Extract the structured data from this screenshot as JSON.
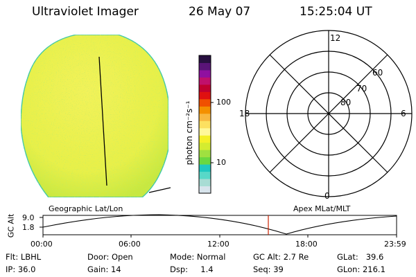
{
  "header": {
    "instrument": "Ultraviolet Imager",
    "date": "26 May 07",
    "time": "15:25:04 UT"
  },
  "colorbar": {
    "label": "photon cm⁻²s⁻¹",
    "ticks": [
      "100",
      "10"
    ],
    "colors": [
      "#d8e4ec",
      "#a8dcd4",
      "#58d8c8",
      "#20c8c0",
      "#6ad840",
      "#a0e040",
      "#d4ec30",
      "#f4f028",
      "#fff89a",
      "#fce060",
      "#f8b840",
      "#f49000",
      "#f05000",
      "#e01010",
      "#c00030",
      "#c0106c",
      "#9010a0",
      "#5a1478",
      "#281040"
    ]
  },
  "polar_plot": {
    "lat_labels": [
      "60",
      "70",
      "80"
    ],
    "mlt_labels": [
      "12",
      "18",
      "6",
      "0"
    ]
  },
  "timeline": {
    "y_axis_label": "GC Alt",
    "y_ticks": [
      "9.0",
      "1.8"
    ],
    "left_label": "Geographic Lat/Lon",
    "right_label": "Apex MLat/MLT",
    "x_ticks": [
      "00:00",
      "06:00",
      "12:00",
      "18:00",
      "23:59"
    ],
    "current_marker_color": "#cc2200"
  },
  "info": {
    "flt": "Flt: LBHL",
    "ip": "IP: 36.0",
    "door": "Door: Open",
    "gain": "Gain: 14",
    "mode": "Mode: Normal",
    "dsp": "Dsp:     1.4",
    "gcalt": "GC Alt: 2.7 Re",
    "seq": "Seq: 39",
    "glat": "GLat:   39.6",
    "glon": "GLon: 216.1"
  }
}
